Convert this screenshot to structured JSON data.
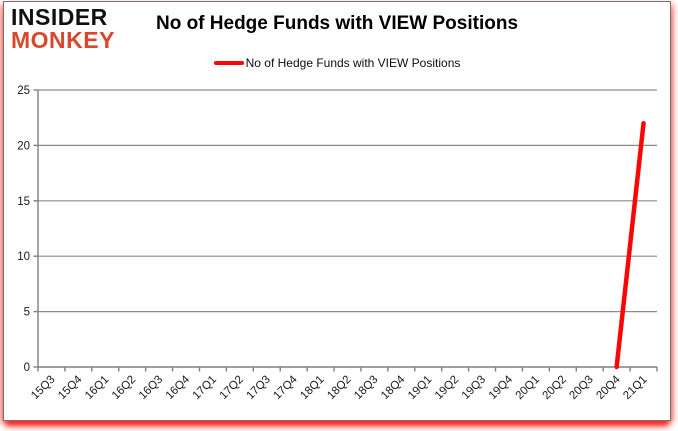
{
  "logo": {
    "line1": "INSIDER",
    "line2": "MONKEY"
  },
  "header": {
    "title": "No of Hedge Funds with VIEW Positions"
  },
  "legend": {
    "label": "No of Hedge Funds with VIEW Positions"
  },
  "colors": {
    "line": "#fb0505",
    "grid": "#8c8c8c",
    "axis": "#7f7f7f",
    "text": "#1a1a1a",
    "logo_black": "#101010",
    "logo_red": "#d9482c"
  },
  "chart_data": {
    "type": "line",
    "title": "No of Hedge Funds with VIEW Positions",
    "categories": [
      "15Q3",
      "15Q4",
      "16Q1",
      "16Q2",
      "16Q3",
      "16Q4",
      "17Q1",
      "17Q2",
      "17Q3",
      "17Q4",
      "18Q1",
      "18Q2",
      "18Q3",
      "18Q4",
      "19Q1",
      "19Q2",
      "19Q3",
      "19Q4",
      "20Q1",
      "20Q2",
      "20Q3",
      "20Q4",
      "21Q1"
    ],
    "series": [
      {
        "name": "No of Hedge Funds with VIEW Positions",
        "color": "#fb0505",
        "values": [
          null,
          null,
          null,
          null,
          null,
          null,
          null,
          null,
          null,
          null,
          null,
          null,
          null,
          null,
          null,
          null,
          null,
          null,
          null,
          null,
          null,
          0,
          22
        ]
      }
    ],
    "xlabel": "",
    "ylabel": "",
    "ylim": [
      0,
      25
    ],
    "yticks": [
      0,
      5,
      10,
      15,
      20,
      25
    ],
    "grid": true,
    "legend_position": "top-center"
  }
}
